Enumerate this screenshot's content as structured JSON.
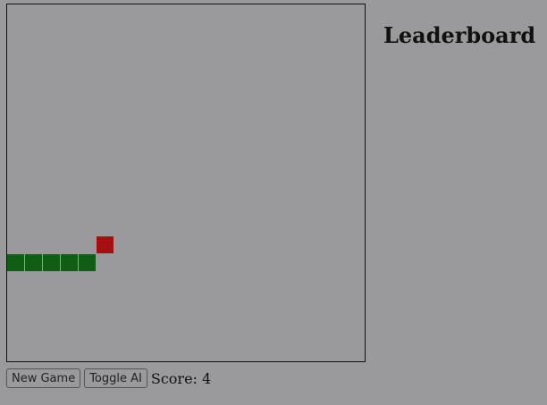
{
  "game": {
    "grid_cols": 20,
    "grid_rows": 20,
    "snake": [
      [
        4,
        14
      ],
      [
        3,
        14
      ],
      [
        2,
        14
      ],
      [
        1,
        14
      ],
      [
        0,
        14
      ]
    ],
    "food": [
      5,
      13
    ],
    "colors": {
      "snake": "#0f5e13",
      "food": "#a40f12",
      "background": "#9a999b"
    }
  },
  "leaderboard": {
    "title": "Leaderboard"
  },
  "controls": {
    "new_game_label": "New Game",
    "toggle_ai_label": "Toggle AI",
    "score_label": "Score: 4"
  }
}
